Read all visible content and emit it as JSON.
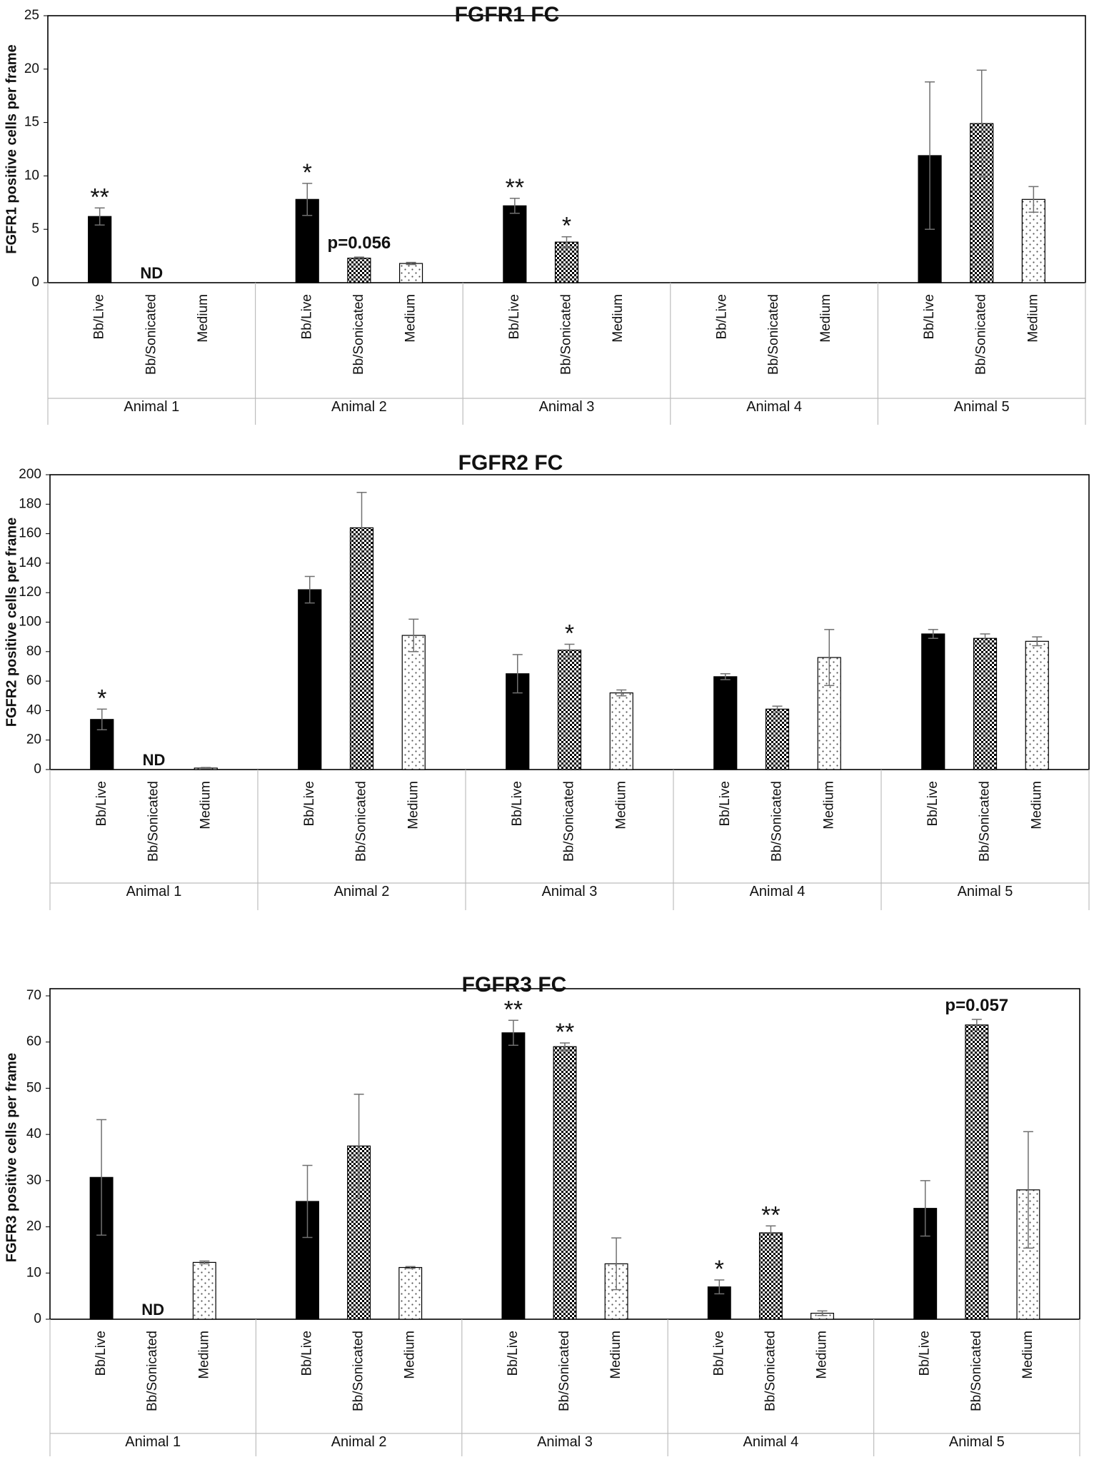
{
  "chart_data": [
    {
      "type": "bar",
      "title": "FGFR1 FC",
      "ylabel": "FGFR1 positive cells per frame",
      "xlabel": "",
      "ylim": [
        0,
        25
      ],
      "yticks": [
        0,
        5,
        10,
        15,
        20,
        25
      ],
      "groups": [
        "Animal 1",
        "Animal 2",
        "Animal 3",
        "Animal 4",
        "Animal 5"
      ],
      "conditions": [
        "Bb/Live",
        "Bb/Sonicated",
        "Medium"
      ],
      "series": [
        {
          "name": "Bb/Live",
          "values": [
            6.2,
            7.8,
            7.2,
            null,
            11.9
          ],
          "errors": [
            0.8,
            1.5,
            0.7,
            null,
            6.9
          ]
        },
        {
          "name": "Bb/Sonicated",
          "values": [
            null,
            2.3,
            3.8,
            null,
            14.9
          ],
          "errors": [
            null,
            0.1,
            0.5,
            null,
            5.0
          ]
        },
        {
          "name": "Medium",
          "values": [
            null,
            1.8,
            null,
            null,
            7.8
          ],
          "errors": [
            null,
            0.1,
            null,
            null,
            1.2
          ]
        }
      ],
      "annotations": [
        {
          "group": 0,
          "condition": 0,
          "text": "**",
          "kind": "star"
        },
        {
          "group": 0,
          "condition": 1,
          "text": "ND",
          "kind": "note"
        },
        {
          "group": 1,
          "condition": 0,
          "text": "*",
          "kind": "star"
        },
        {
          "group": 1,
          "condition": 1,
          "text": "p=0.056",
          "kind": "note"
        },
        {
          "group": 2,
          "condition": 0,
          "text": "**",
          "kind": "star"
        },
        {
          "group": 2,
          "condition": 1,
          "text": "*",
          "kind": "star"
        }
      ]
    },
    {
      "type": "bar",
      "title": "FGFR2 FC",
      "ylabel": "FGFR2 positive cells per frame",
      "xlabel": "",
      "ylim": [
        0,
        200
      ],
      "yticks": [
        0,
        20,
        40,
        60,
        80,
        100,
        120,
        140,
        160,
        180,
        200
      ],
      "groups": [
        "Animal 1",
        "Animal 2",
        "Animal 3",
        "Animal 4",
        "Animal 5"
      ],
      "conditions": [
        "Bb/Live",
        "Bb/Sonicated",
        "Medium"
      ],
      "series": [
        {
          "name": "Bb/Live",
          "values": [
            34,
            122,
            65,
            63,
            92
          ],
          "errors": [
            7,
            9,
            13,
            2,
            3
          ]
        },
        {
          "name": "Bb/Sonicated",
          "values": [
            null,
            164,
            81,
            41,
            89
          ],
          "errors": [
            null,
            24,
            4,
            2,
            3
          ]
        },
        {
          "name": "Medium",
          "values": [
            1,
            91,
            52,
            76,
            87
          ],
          "errors": [
            0.4,
            11,
            2,
            19,
            3
          ]
        }
      ],
      "annotations": [
        {
          "group": 0,
          "condition": 0,
          "text": "*",
          "kind": "star"
        },
        {
          "group": 0,
          "condition": 1,
          "text": "ND",
          "kind": "note"
        },
        {
          "group": 2,
          "condition": 1,
          "text": "*",
          "kind": "star"
        }
      ]
    },
    {
      "type": "bar",
      "title": "FGFR3 FC",
      "ylabel": "FGFR3 positive cells per frame",
      "xlabel": "",
      "ylim": [
        0,
        70
      ],
      "yticks": [
        0,
        10,
        20,
        30,
        40,
        50,
        60,
        70
      ],
      "groups": [
        "Animal 1",
        "Animal 2",
        "Animal 3",
        "Animal 4",
        "Animal 5"
      ],
      "conditions": [
        "Bb/Live",
        "Bb/Sonicated",
        "Medium"
      ],
      "series": [
        {
          "name": "Bb/Live",
          "values": [
            30.7,
            25.5,
            62,
            7,
            24
          ],
          "errors": [
            12.5,
            7.8,
            2.7,
            1.5,
            6
          ]
        },
        {
          "name": "Bb/Sonicated",
          "values": [
            null,
            37.5,
            59,
            18.7,
            63.7
          ],
          "errors": [
            null,
            11.2,
            0.8,
            1.5,
            1.2
          ]
        },
        {
          "name": "Medium",
          "values": [
            12.3,
            11.2,
            12,
            1.3,
            28
          ],
          "errors": [
            0.3,
            0.2,
            5.6,
            0.5,
            12.6
          ]
        }
      ],
      "annotations": [
        {
          "group": 0,
          "condition": 1,
          "text": "ND",
          "kind": "note"
        },
        {
          "group": 2,
          "condition": 0,
          "text": "**",
          "kind": "star"
        },
        {
          "group": 2,
          "condition": 1,
          "text": "**",
          "kind": "star"
        },
        {
          "group": 3,
          "condition": 0,
          "text": "*",
          "kind": "star"
        },
        {
          "group": 3,
          "condition": 1,
          "text": "**",
          "kind": "star"
        },
        {
          "group": 4,
          "condition": 1,
          "text": "p=0.057",
          "kind": "note"
        }
      ]
    }
  ],
  "colors": {
    "live_fill": "#000000",
    "checker_dark": "#000000",
    "checker_light": "#ffffff",
    "dots": "#555555",
    "frame": "#000000",
    "axis_line": "#bdbdbd",
    "error_bar": "#707070",
    "text": "#111111"
  }
}
